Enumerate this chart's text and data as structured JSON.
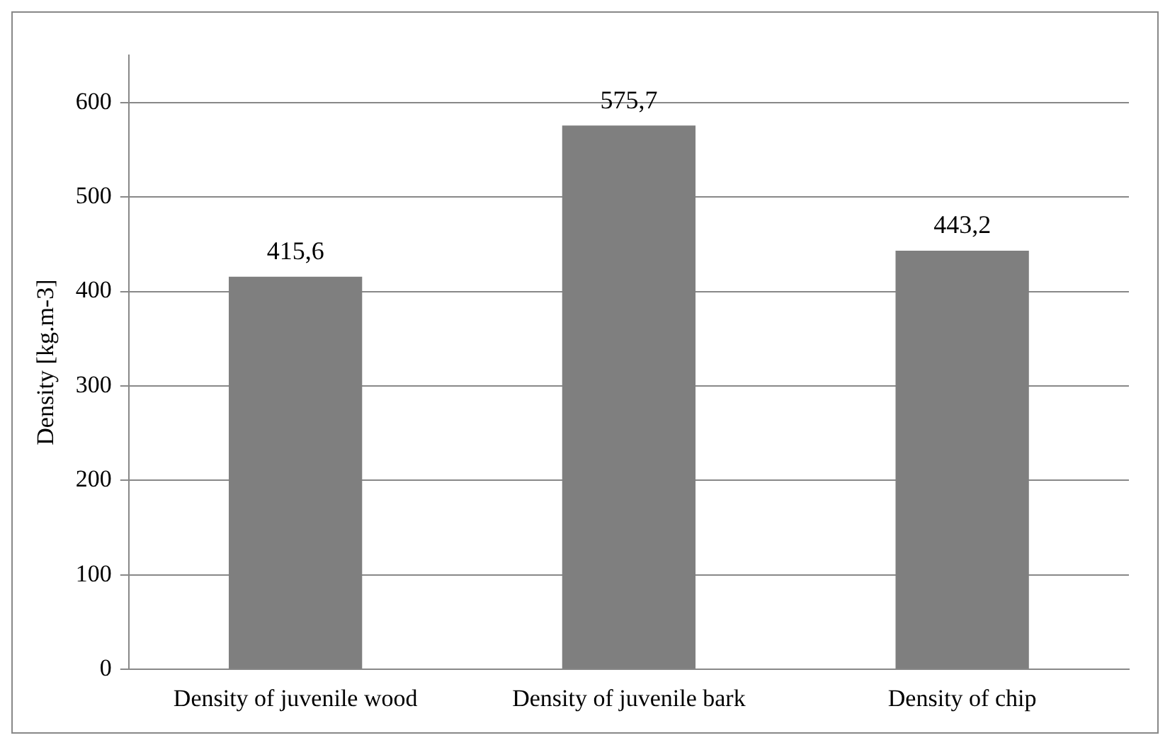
{
  "chart_data": {
    "type": "bar",
    "ylabel": "Density [kg.m-3]",
    "categories": [
      "Density of juvenile wood",
      "Density of juvenile bark",
      "Density of chip"
    ],
    "values": [
      415.6,
      575.7,
      443.2
    ],
    "value_labels": [
      "415,6",
      "575,7",
      "443,2"
    ],
    "color": "#7f7f7f",
    "ylim": [
      0,
      650
    ],
    "yticks": [
      0,
      100,
      200,
      300,
      400,
      500,
      600
    ],
    "grid": "y",
    "legend": false
  }
}
